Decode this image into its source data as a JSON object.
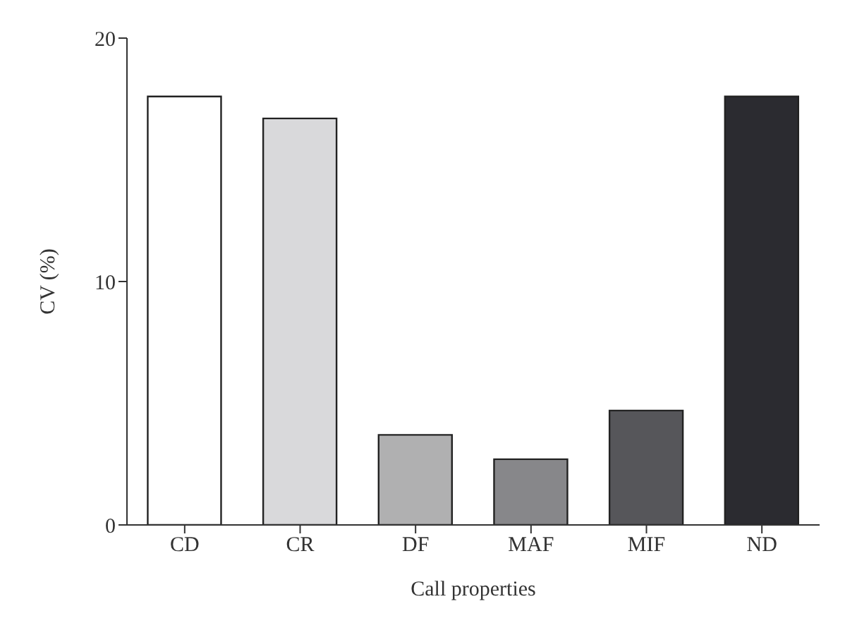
{
  "chart_data": {
    "type": "bar",
    "xlabel": "Call properties",
    "ylabel": "CV (%)",
    "categories": [
      "CD",
      "CR",
      "DF",
      "MAF",
      "MIF",
      "ND"
    ],
    "values": [
      17.6,
      16.7,
      3.7,
      2.7,
      4.7,
      17.6
    ],
    "colors": [
      "#ffffff",
      "#d9d9db",
      "#b0b0b1",
      "#87878a",
      "#56565a",
      "#2b2b30"
    ],
    "ylim": [
      0,
      20
    ],
    "yticks": [
      0,
      10,
      20
    ],
    "grid": false
  }
}
